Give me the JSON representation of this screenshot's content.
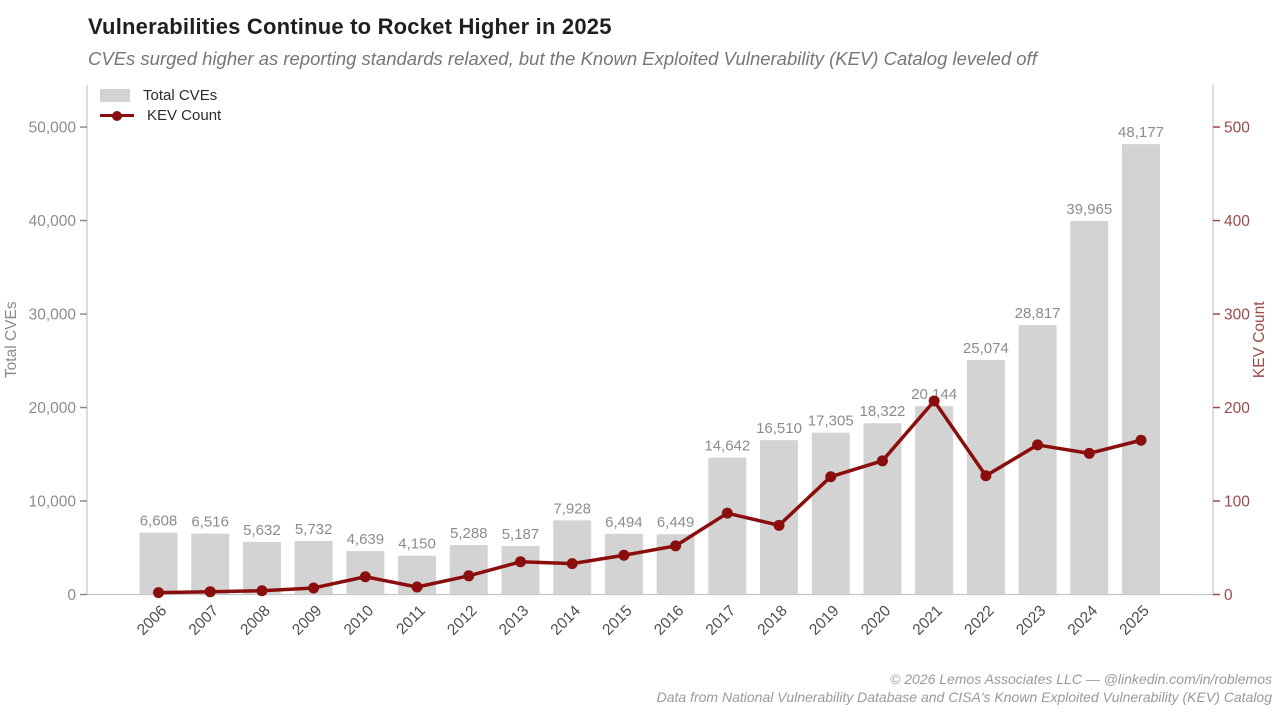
{
  "header": {
    "title": "Vulnerabilities Continue to Rocket Higher in 2025",
    "subtitle": "CVEs surged higher as reporting standards relaxed, but the Known Exploited Vulnerability (KEV) Catalog leveled off"
  },
  "legend": {
    "items": [
      {
        "label": "Total CVEs",
        "swatch": "bar"
      },
      {
        "label": "KEV Count",
        "swatch": "line"
      }
    ]
  },
  "footer": {
    "line1": "© 2026 Lemos Associates LLC — @linkedin.com/in/roblemos",
    "line2": "Data from National Vulnerability Database and CISA's Known Exploited Vulnerability (KEV) Catalog"
  },
  "chart_data": {
    "type": "bar",
    "title": "Vulnerabilities Continue to Rocket Higher in 2025",
    "subtitle": "CVEs surged higher as reporting standards relaxed, but the Known Exploited Vulnerability (KEV) Catalog leveled off",
    "categories": [
      "2006",
      "2007",
      "2008",
      "2009",
      "2010",
      "2011",
      "2012",
      "2013",
      "2014",
      "2015",
      "2016",
      "2017",
      "2018",
      "2019",
      "2020",
      "2021",
      "2022",
      "2023",
      "2024",
      "2025"
    ],
    "series": [
      {
        "name": "Total CVEs",
        "type": "bar",
        "axis": "left",
        "values": [
          6608,
          6516,
          5632,
          5732,
          4639,
          4150,
          5288,
          5187,
          7928,
          6494,
          6449,
          14642,
          16510,
          17305,
          18322,
          20144,
          25074,
          28817,
          39965,
          48177
        ],
        "data_labels": [
          "6,608",
          "6,516",
          "5,632",
          "5,732",
          "4,639",
          "4,150",
          "5,288",
          "5,187",
          "7,928",
          "6,494",
          "6,449",
          "14,642",
          "16,510",
          "17,305",
          "18,322",
          "20,144",
          "25,074",
          "28,817",
          "39,965",
          "48,177"
        ]
      },
      {
        "name": "KEV Count",
        "type": "line",
        "axis": "right",
        "values": [
          2,
          3,
          4,
          7,
          19,
          8,
          20,
          35,
          33,
          42,
          52,
          87,
          74,
          126,
          143,
          207,
          127,
          160,
          151,
          165
        ]
      }
    ],
    "left_axis": {
      "label": "Total CVEs",
      "ticks": [
        0,
        10000,
        20000,
        30000,
        40000,
        50000
      ],
      "max": 54500
    },
    "right_axis": {
      "label": "KEV Count",
      "ticks": [
        0,
        100,
        200,
        300,
        400,
        500
      ],
      "max": 545
    },
    "grid": false,
    "legend_position": "upper-left",
    "colors": {
      "bar": "#d3d3d3",
      "line": "#8b0e0e",
      "bar_label": "#8c8c8c",
      "left_axis_text": "#8c8c8c",
      "right_axis_text": "#9c4848",
      "x_label_text": "#4d4d4d",
      "spine": "#c6c6c6"
    }
  }
}
